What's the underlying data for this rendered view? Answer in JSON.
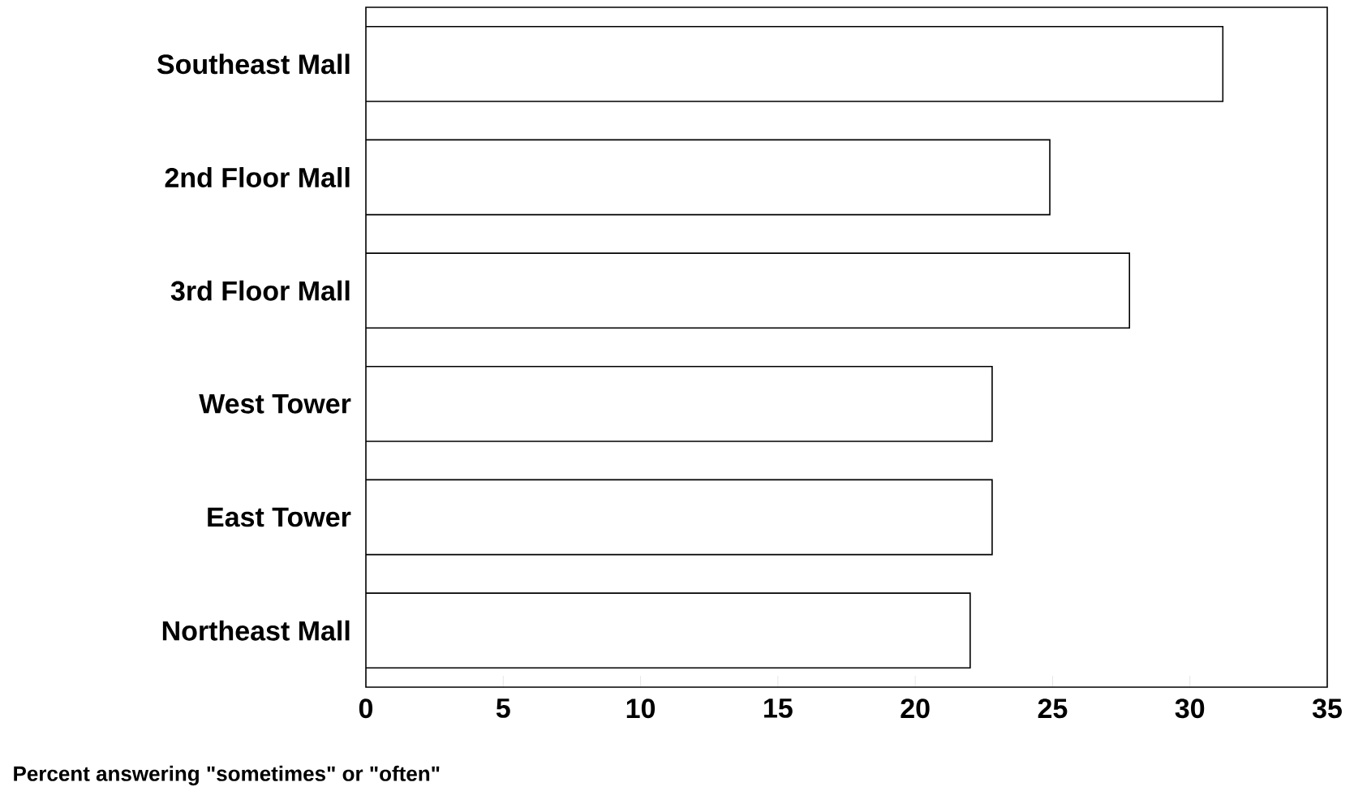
{
  "chart_data": {
    "type": "bar",
    "orientation": "horizontal",
    "categories": [
      "Southeast Mall",
      "2nd Floor Mall",
      "3rd Floor Mall",
      "West Tower",
      "East Tower",
      "Northeast Mall"
    ],
    "values": [
      31.2,
      24.9,
      27.8,
      22.8,
      22.8,
      22.0
    ],
    "color": "#ffffff",
    "xlabel": "Percent answering \"sometimes\" or \"often\"",
    "xlim": [
      0,
      35
    ],
    "xticks": [
      0,
      5,
      10,
      15,
      20,
      25,
      30,
      35
    ]
  }
}
